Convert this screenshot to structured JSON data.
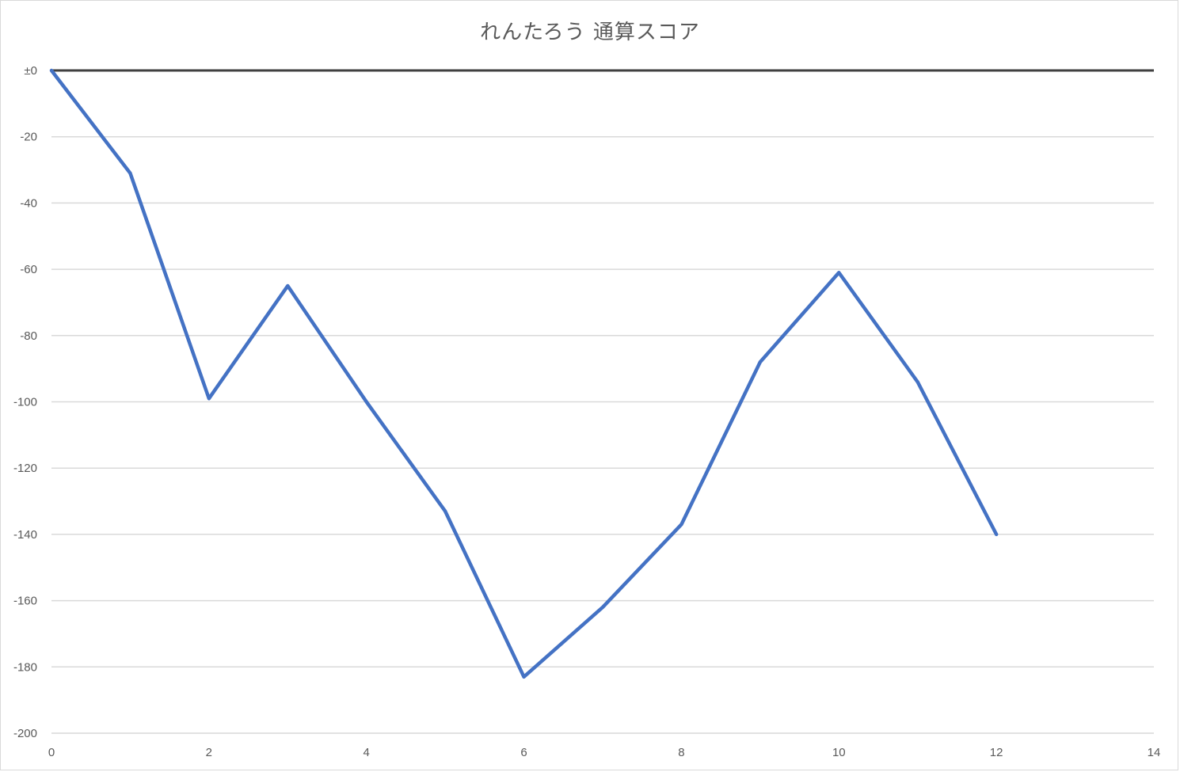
{
  "chart_data": {
    "type": "line",
    "title": "れんたろう 通算スコア",
    "xlabel": "",
    "ylabel": "",
    "xlim": [
      0,
      14
    ],
    "ylim": [
      -200,
      0
    ],
    "x_ticks": [
      0,
      2,
      4,
      6,
      8,
      10,
      12,
      14
    ],
    "y_ticks": [
      {
        "value": 0,
        "label": "±0"
      },
      {
        "value": -20,
        "label": "-20"
      },
      {
        "value": -40,
        "label": "-40"
      },
      {
        "value": -60,
        "label": "-60"
      },
      {
        "value": -80,
        "label": "-80"
      },
      {
        "value": -100,
        "label": "-100"
      },
      {
        "value": -120,
        "label": "-120"
      },
      {
        "value": -140,
        "label": "-140"
      },
      {
        "value": -160,
        "label": "-160"
      },
      {
        "value": -180,
        "label": "-180"
      },
      {
        "value": -200,
        "label": "-200"
      }
    ],
    "grid": true,
    "legend": "none",
    "series": [
      {
        "color": "#4472c4",
        "x": [
          0,
          1,
          2,
          3,
          4,
          5,
          6,
          7,
          8,
          9,
          10,
          11,
          12
        ],
        "values": [
          0,
          -31,
          -99,
          -65,
          -100,
          -133,
          -183,
          -162,
          -137,
          -88,
          -61,
          -94,
          -140
        ]
      }
    ]
  }
}
